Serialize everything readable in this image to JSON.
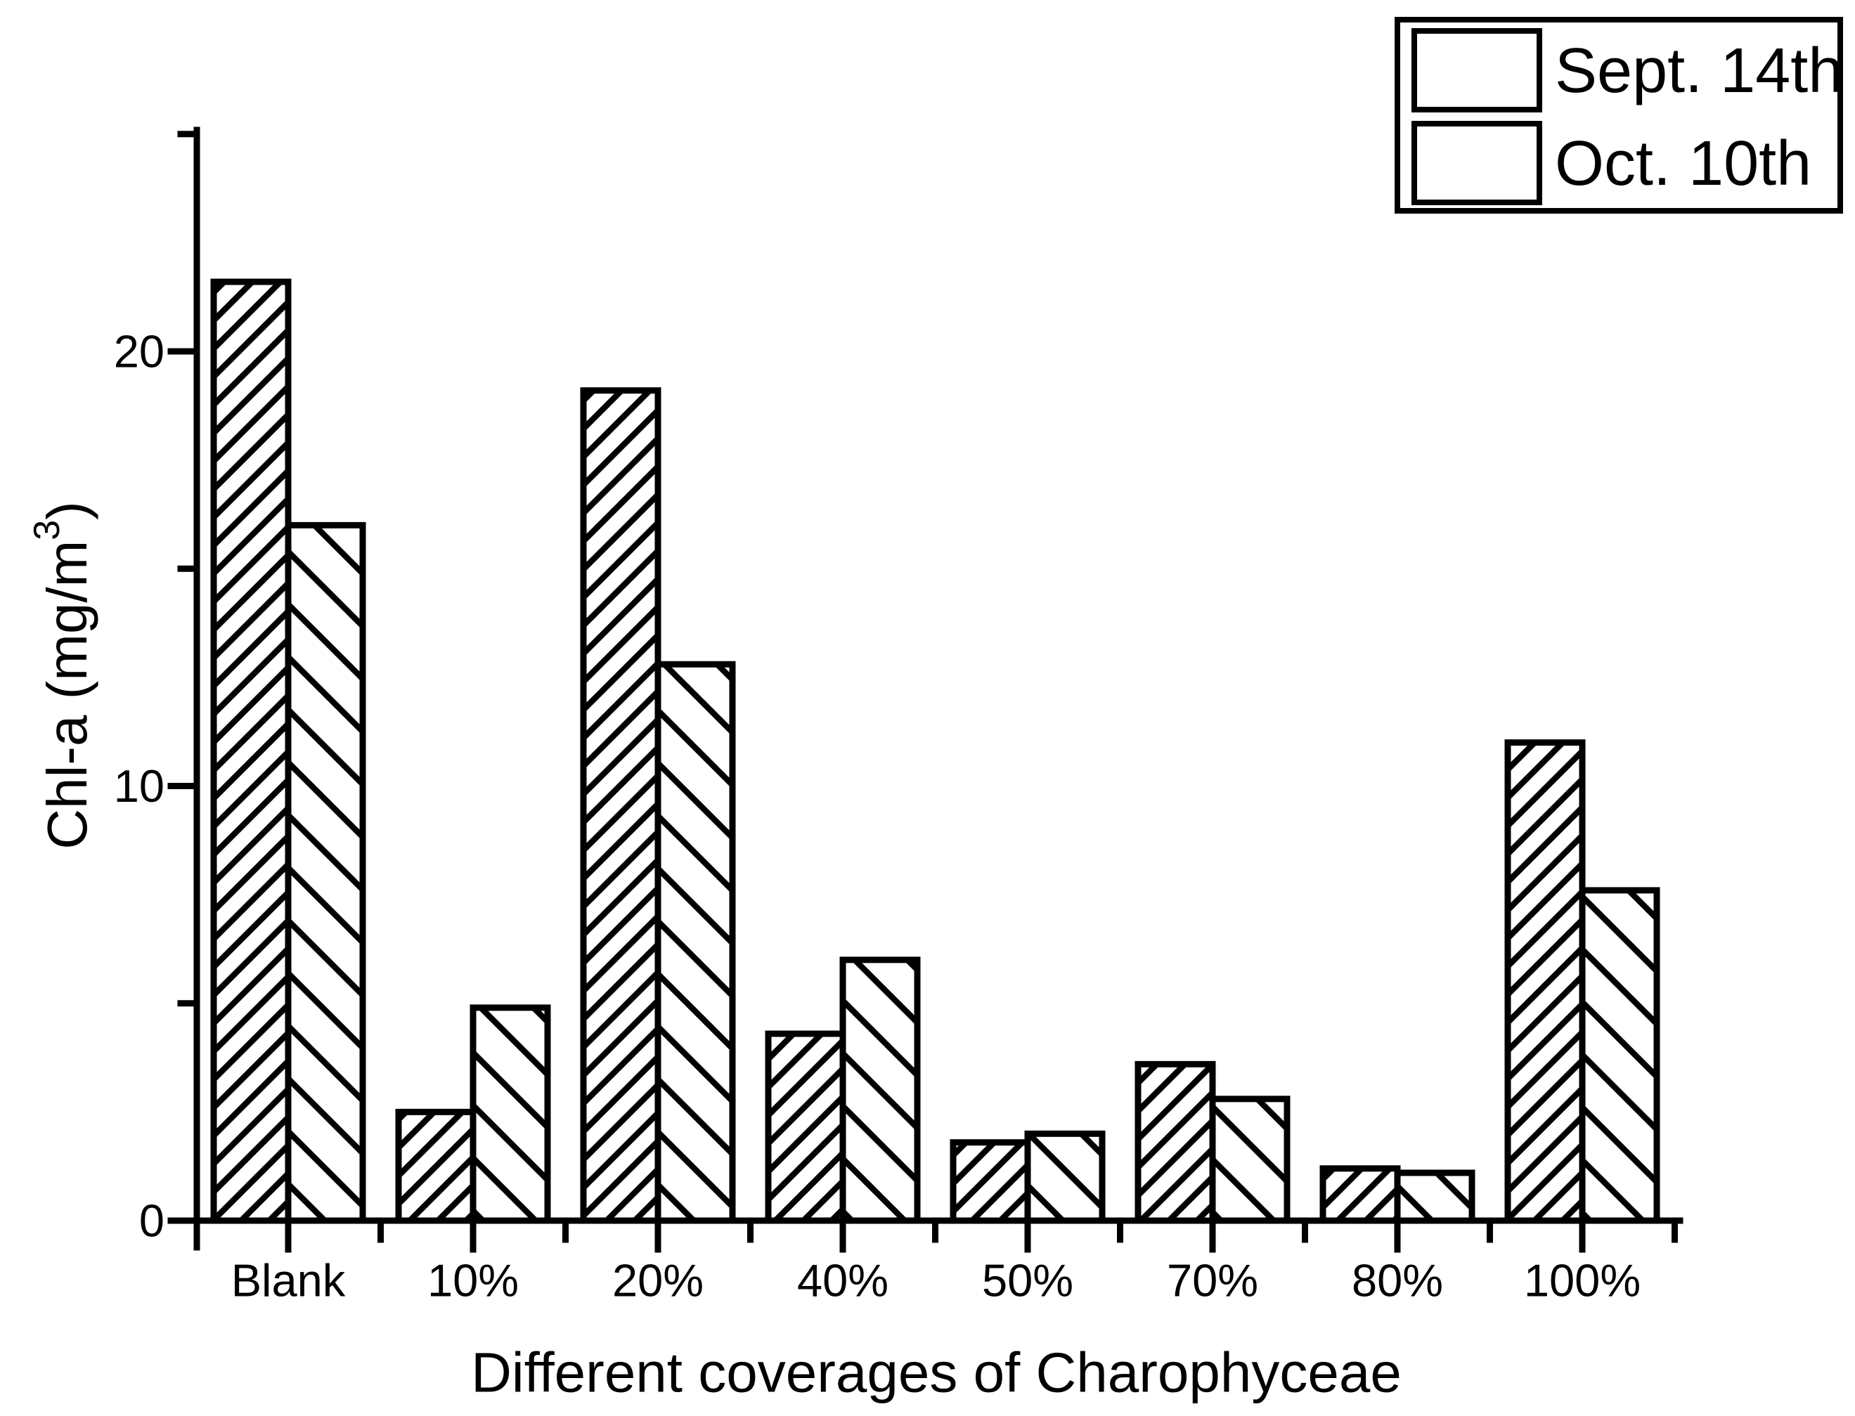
{
  "chart_data": {
    "type": "bar",
    "title": "",
    "categories": [
      "Blank",
      "10%",
      "20%",
      "40%",
      "50%",
      "70%",
      "80%",
      "100%"
    ],
    "series": [
      {
        "name": "Sept. 14th",
        "hatch": "diagonal-forward",
        "values": [
          21.6,
          2.5,
          19.1,
          4.3,
          1.8,
          3.6,
          1.2,
          11.0
        ]
      },
      {
        "name": "Oct. 10th",
        "hatch": "diagonal-backward",
        "values": [
          16.0,
          4.9,
          12.8,
          6.0,
          2.0,
          2.8,
          1.1,
          7.6
        ]
      }
    ],
    "xlabel": "Different coverages of Charophyceae",
    "ylabel": "Chl-a (mg/m³)",
    "ylabel_parts": {
      "base": "Chl-a (mg/m",
      "sup": "3",
      "close": ")"
    },
    "ylim": [
      0,
      25.1
    ],
    "yticks": [
      0,
      10,
      20
    ],
    "yticks_minor": [
      5,
      15,
      25
    ],
    "grid": false,
    "legend_position": "top-right",
    "colors": {
      "foreground": "#000000",
      "background": "#ffffff"
    }
  }
}
